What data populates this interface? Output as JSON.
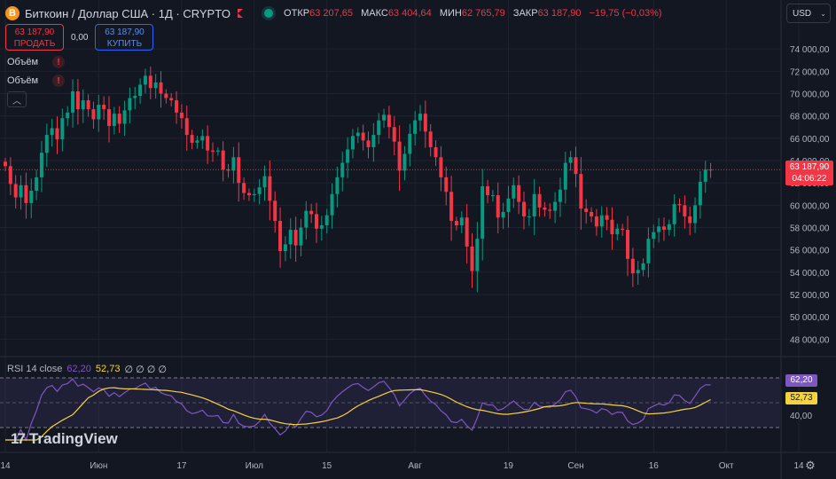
{
  "header": {
    "symbol_icon": "bitcoin-icon",
    "symbol_letter": "B",
    "title": "Биткоин / Доллар США · 1Д · CRYPTO",
    "ohlc": [
      {
        "label": "ОТКР",
        "value": "63 207,65"
      },
      {
        "label": "МАКС",
        "value": "63 404,64"
      },
      {
        "label": "МИН",
        "value": "62 765,79"
      },
      {
        "label": "ЗАКР",
        "value": "63 187,90"
      },
      {
        "label": "",
        "value": "−19,75 (−0,03%)"
      }
    ]
  },
  "trade": {
    "sell_price": "63 187,90",
    "sell_label": "ПРОДАТЬ",
    "spread": "0,00",
    "buy_price": "63 187,90",
    "buy_label": "КУПИТЬ"
  },
  "indicators": [
    {
      "label": "Объём",
      "icon": "warning-icon",
      "mark": "!"
    },
    {
      "label": "Объём",
      "icon": "warning-icon",
      "mark": "!"
    }
  ],
  "collapse_glyph": "︿",
  "currency": {
    "value": "USD",
    "glyph": "⌄"
  },
  "last_price": {
    "price": "63 187,90",
    "countdown": "04:06:22"
  },
  "rsi": {
    "label": "RSI 14 close",
    "rsi_value": "62,20",
    "ma_value": "52,73",
    "na_values": "∅ ∅ ∅ ∅",
    "axis_labels": [
      "40,00"
    ]
  },
  "brand": {
    "mark": "17",
    "name": "TradingView"
  },
  "settings_glyph": "⚙",
  "colors": {
    "background": "#131722",
    "up": "#089981",
    "down": "#f23645",
    "rsi_line": "#7e57c2",
    "rsi_ma": "#f5d33f",
    "text": "#d1d4dc"
  },
  "chart_data": {
    "type": "candlestick",
    "timeframe": "1D",
    "ylim": [
      47000,
      76000
    ],
    "y_ticks": [
      74000,
      72000,
      70000,
      68000,
      66000,
      64000,
      62000,
      60000,
      58000,
      56000,
      54000,
      52000,
      50000,
      48000
    ],
    "y_tick_labels": [
      "74 000,00",
      "72 000,00",
      "70 000,00",
      "68 000,00",
      "66 000,00",
      "64 000,00",
      "62 000,00",
      "60 000,00",
      "58 000,00",
      "56 000,00",
      "54 000,00",
      "52 000,00",
      "50 000,00",
      "48 000,00"
    ],
    "x_tick_labels": [
      {
        "label": "14",
        "index": 0
      },
      {
        "label": "Июн",
        "index": 18
      },
      {
        "label": "17",
        "index": 34
      },
      {
        "label": "Июл",
        "index": 48
      },
      {
        "label": "15",
        "index": 62
      },
      {
        "label": "Авг",
        "index": 79
      },
      {
        "label": "19",
        "index": 97
      },
      {
        "label": "Сен",
        "index": 110
      },
      {
        "label": "16",
        "index": 125
      },
      {
        "label": "Окт",
        "index": 139
      },
      {
        "label": "14",
        "index": 153
      }
    ],
    "close": [
      63500,
      61900,
      60700,
      61800,
      60200,
      61300,
      62500,
      64700,
      66300,
      66900,
      65900,
      67800,
      68300,
      70200,
      68600,
      69400,
      68600,
      67700,
      69000,
      68600,
      67100,
      68200,
      67300,
      68500,
      69600,
      69800,
      70800,
      71600,
      70500,
      71000,
      70000,
      69600,
      69400,
      68300,
      67800,
      66300,
      65600,
      65800,
      66200,
      64900,
      64800,
      64900,
      63200,
      63100,
      64300,
      62000,
      61100,
      60900,
      61000,
      61600,
      62600,
      60400,
      58600,
      55900,
      56500,
      57800,
      56400,
      58000,
      59500,
      59200,
      57900,
      58200,
      59100,
      61000,
      62500,
      63800,
      65000,
      66200,
      66500,
      65800,
      65200,
      66300,
      67600,
      68100,
      67000,
      65700,
      63100,
      64600,
      66400,
      67600,
      68200,
      66600,
      65200,
      64300,
      62500,
      61200,
      58600,
      58200,
      58900,
      56300,
      54100,
      57000,
      61700,
      60900,
      60900,
      58900,
      59400,
      60600,
      61800,
      60300,
      59000,
      59000,
      61000,
      59800,
      59600,
      59500,
      60300,
      61400,
      63800,
      64300,
      62800,
      59700,
      59400,
      59000,
      58100,
      59100,
      58700,
      57400,
      57900,
      57800,
      55200,
      53900,
      54200,
      54800,
      57000,
      57600,
      58100,
      57800,
      58300,
      60100,
      60000,
      59000,
      58400,
      60000,
      62100,
      63200,
      63187.9
    ]
  }
}
